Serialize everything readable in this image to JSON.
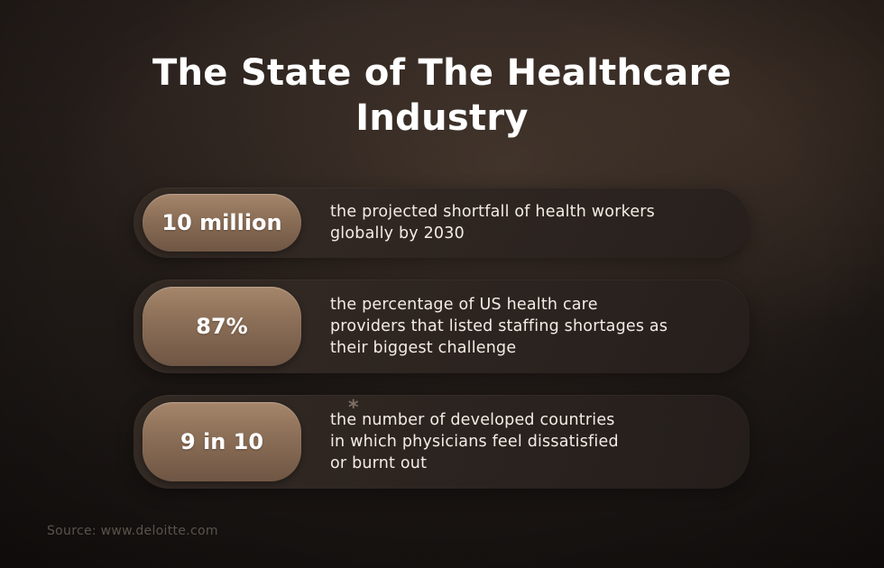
{
  "title": {
    "line1": "The State of The Healthcare",
    "line2": "Industry"
  },
  "stats": [
    {
      "value": "10 million",
      "lines": [
        "the projected shortfall of health workers",
        "globally by 2030"
      ]
    },
    {
      "value": "87%",
      "lines": [
        "the percentage of US health care",
        "providers that listed staffing shortages as",
        "their biggest challenge"
      ]
    },
    {
      "value": "9 in 10",
      "lines": [
        "the number of developed countries",
        "in which physicians feel dissatisfied",
        "or burnt out"
      ]
    }
  ],
  "asterisk": "*",
  "source": "Source: www.deloitte.com",
  "colors": {
    "background": "#201a17",
    "card": "#2f2622",
    "pill_accent": "#8d7058",
    "text": "#ffffff",
    "source_text": "#5c524b"
  }
}
